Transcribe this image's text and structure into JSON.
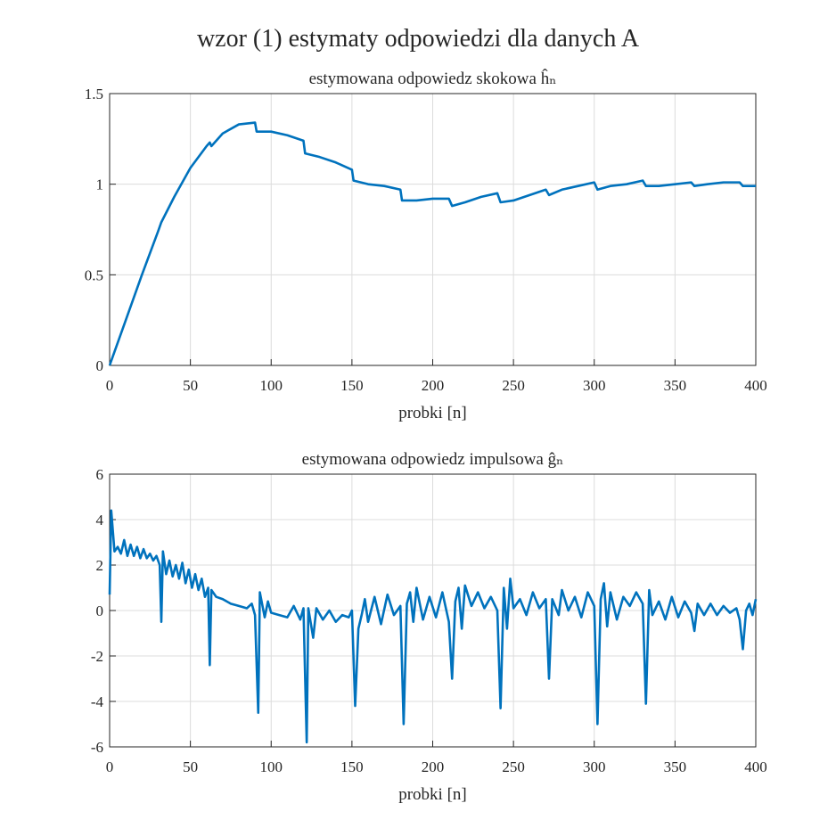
{
  "figure_title": "wzor (1) estymaty odpowiedzi dla danych A",
  "chart_data": [
    {
      "type": "line",
      "title": "estymowana odpowiedz skokowa ĥₙ",
      "xlabel": "probki [n]",
      "xlim": [
        0,
        400
      ],
      "xticks": [
        0,
        50,
        100,
        150,
        200,
        250,
        300,
        350,
        400
      ],
      "ylim": [
        0,
        1.5
      ],
      "yticks": [
        0,
        0.5,
        1,
        1.5
      ],
      "grid": true,
      "x": [
        0,
        2,
        10,
        20,
        30,
        32,
        40,
        50,
        60,
        62,
        63,
        70,
        80,
        90,
        91,
        100,
        110,
        120,
        121,
        130,
        140,
        150,
        151,
        160,
        170,
        180,
        181,
        190,
        200,
        210,
        212,
        220,
        230,
        240,
        242,
        250,
        260,
        270,
        272,
        280,
        290,
        300,
        302,
        310,
        320,
        330,
        332,
        340,
        350,
        360,
        362,
        370,
        380,
        390,
        392,
        400
      ],
      "series": [
        {
          "color": "#0072bd",
          "values": [
            0,
            0.05,
            0.25,
            0.5,
            0.74,
            0.79,
            0.93,
            1.09,
            1.21,
            1.23,
            1.21,
            1.28,
            1.33,
            1.34,
            1.29,
            1.29,
            1.27,
            1.24,
            1.17,
            1.15,
            1.12,
            1.08,
            1.02,
            1.0,
            0.99,
            0.97,
            0.91,
            0.91,
            0.92,
            0.92,
            0.88,
            0.9,
            0.93,
            0.95,
            0.9,
            0.91,
            0.94,
            0.97,
            0.94,
            0.97,
            0.99,
            1.01,
            0.97,
            0.99,
            1.0,
            1.02,
            0.99,
            0.99,
            1.0,
            1.01,
            0.99,
            1.0,
            1.01,
            1.01,
            0.99,
            0.99
          ]
        }
      ]
    },
    {
      "type": "line",
      "title": "estymowana odpowiedz impulsowa ĝₙ",
      "xlabel": "probki [n]",
      "xlim": [
        0,
        400
      ],
      "xticks": [
        0,
        50,
        100,
        150,
        200,
        250,
        300,
        350,
        400
      ],
      "ylim": [
        -6,
        6
      ],
      "yticks": [
        -6,
        -4,
        -2,
        0,
        2,
        4,
        6
      ],
      "grid": true,
      "x": [
        0,
        1,
        3,
        5,
        7,
        9,
        11,
        13,
        15,
        17,
        19,
        21,
        23,
        25,
        27,
        29,
        31,
        32,
        33,
        35,
        37,
        39,
        41,
        43,
        45,
        47,
        49,
        51,
        53,
        55,
        57,
        59,
        61,
        62,
        63,
        66,
        70,
        75,
        80,
        85,
        88,
        90,
        92,
        93,
        96,
        98,
        100,
        105,
        110,
        114,
        118,
        120,
        122,
        123,
        126,
        128,
        132,
        136,
        140,
        144,
        148,
        150,
        152,
        154,
        156,
        158,
        160,
        164,
        168,
        172,
        176,
        180,
        182,
        184,
        186,
        188,
        190,
        194,
        198,
        202,
        206,
        210,
        212,
        214,
        216,
        218,
        220,
        224,
        228,
        232,
        236,
        240,
        242,
        244,
        246,
        248,
        250,
        254,
        258,
        262,
        266,
        270,
        272,
        274,
        278,
        280,
        284,
        288,
        292,
        296,
        300,
        302,
        304,
        306,
        308,
        310,
        314,
        318,
        322,
        326,
        330,
        332,
        334,
        336,
        340,
        344,
        348,
        352,
        356,
        360,
        362,
        364,
        368,
        372,
        376,
        380,
        384,
        388,
        390,
        392,
        394,
        396,
        398,
        400
      ],
      "series": [
        {
          "color": "#0072bd",
          "values": [
            0.7,
            4.4,
            2.6,
            2.8,
            2.5,
            3.1,
            2.4,
            2.9,
            2.4,
            2.8,
            2.3,
            2.7,
            2.3,
            2.5,
            2.2,
            2.4,
            2.0,
            -0.5,
            2.6,
            1.6,
            2.2,
            1.5,
            2.0,
            1.4,
            2.1,
            1.2,
            1.8,
            1.0,
            1.6,
            0.9,
            1.4,
            0.6,
            1.0,
            -2.4,
            0.9,
            0.6,
            0.5,
            0.3,
            0.2,
            0.1,
            0.3,
            -0.2,
            -4.5,
            0.8,
            -0.3,
            0.4,
            -0.1,
            -0.2,
            -0.3,
            0.2,
            -0.4,
            0.1,
            -5.8,
            0.1,
            -1.2,
            0.1,
            -0.4,
            0.0,
            -0.5,
            -0.2,
            -0.3,
            0.0,
            -4.2,
            -0.8,
            -0.2,
            0.5,
            -0.5,
            0.6,
            -0.6,
            0.7,
            -0.2,
            0.2,
            -5.0,
            0.3,
            0.8,
            -0.5,
            1.0,
            -0.4,
            0.6,
            -0.3,
            0.8,
            -0.5,
            -3.0,
            0.4,
            1.0,
            -0.8,
            1.1,
            0.2,
            0.8,
            0.1,
            0.6,
            0.0,
            -4.3,
            1.0,
            -0.8,
            1.4,
            0.1,
            0.5,
            -0.2,
            0.8,
            0.1,
            0.5,
            -3.0,
            0.5,
            -0.2,
            0.9,
            0.0,
            0.6,
            -0.3,
            0.8,
            0.2,
            -5.0,
            0.5,
            1.2,
            -0.7,
            0.8,
            -0.4,
            0.6,
            0.2,
            0.8,
            0.3,
            -4.1,
            0.9,
            -0.2,
            0.4,
            -0.4,
            0.6,
            -0.3,
            0.4,
            -0.1,
            -0.9,
            0.3,
            -0.2,
            0.3,
            -0.2,
            0.2,
            -0.1,
            0.1,
            -0.4,
            -1.7,
            0.0,
            0.3,
            -0.2,
            0.5
          ]
        }
      ]
    }
  ]
}
